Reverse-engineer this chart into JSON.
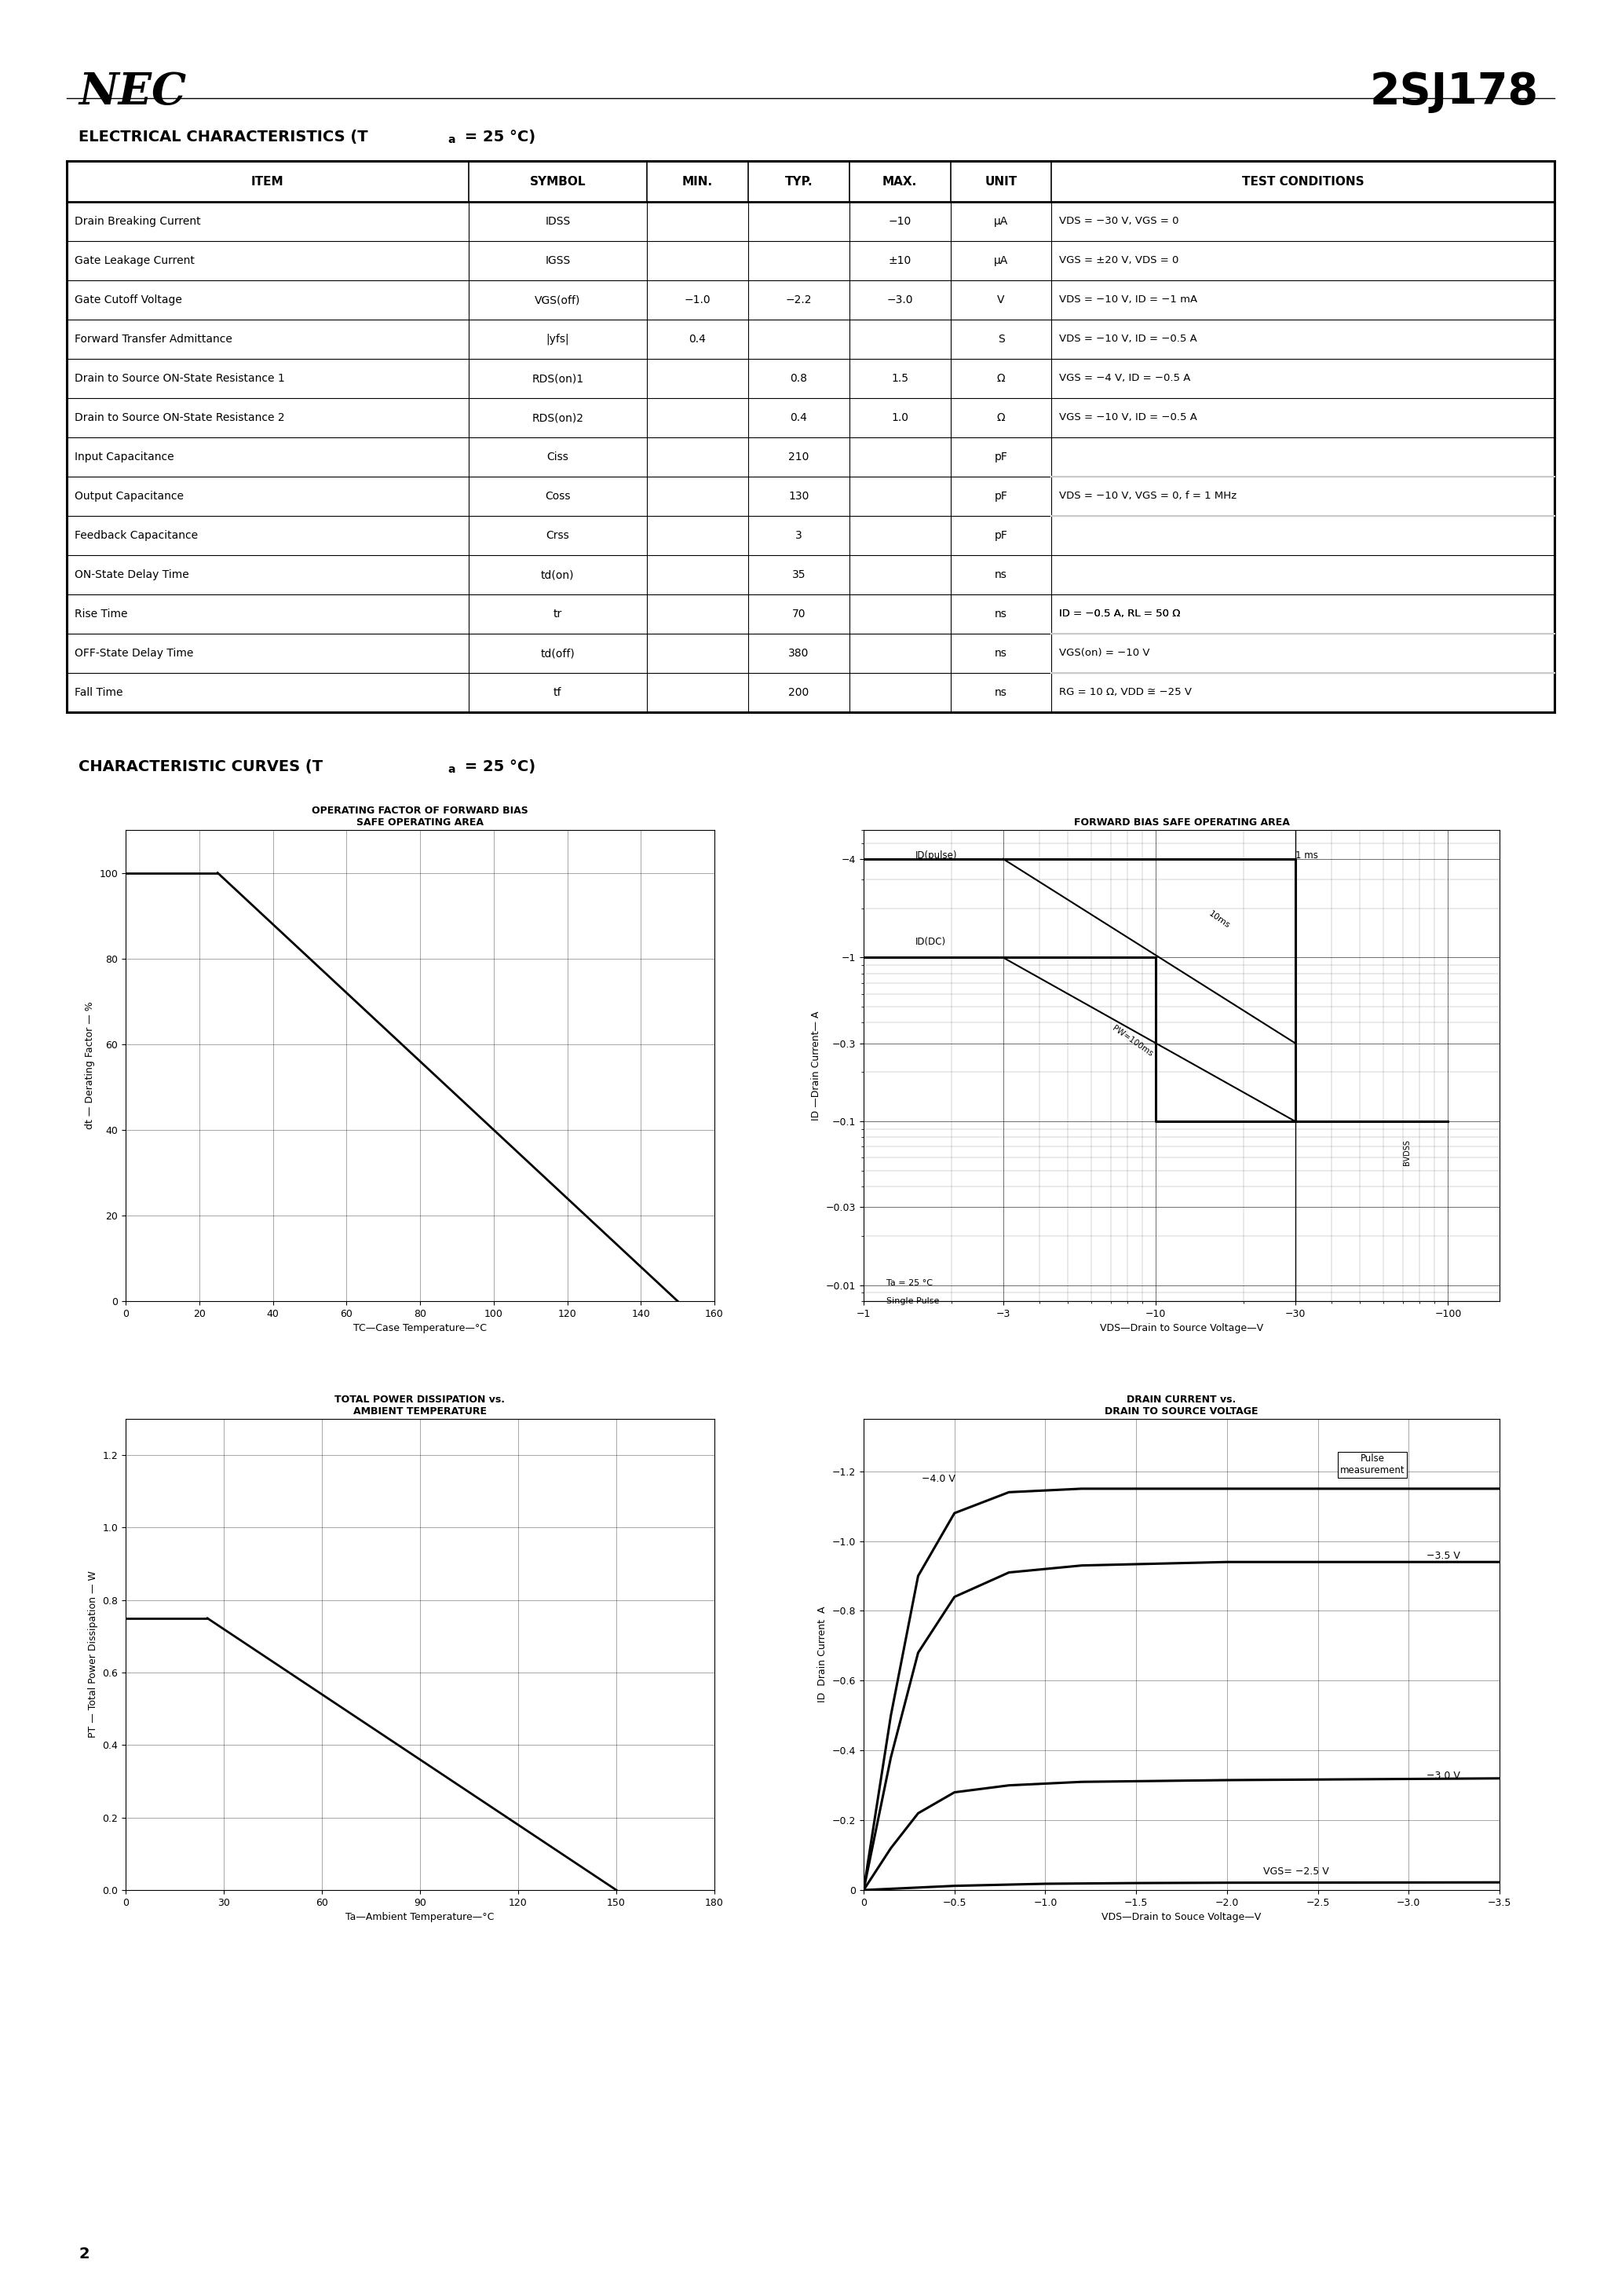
{
  "title_left": "NEC",
  "title_right": "2SJ178",
  "section1_title": "ELECTRICAL CHARACTERISTICS (Ta = 25 °C)",
  "section2_title": "CHARACTERISTIC CURVES (Ta = 25 °C)",
  "table_headers": [
    "ITEM",
    "SYMBOL",
    "MIN.",
    "TYP.",
    "MAX.",
    "UNIT",
    "TEST CONDITIONS"
  ],
  "symbol_texts": [
    "IDSS",
    "IGSS",
    "VGS(off)",
    "|yfs|",
    "RDS(on)1",
    "RDS(on)2",
    "Ciss",
    "Coss",
    "Crss",
    "td(on)",
    "tr",
    "td(off)",
    "tf"
  ],
  "table_rows": [
    [
      "Drain Breaking Current",
      "IDSS",
      "",
      "",
      "−10",
      "μA",
      "VDS = −30 V, VGS = 0"
    ],
    [
      "Gate Leakage Current",
      "IGSS",
      "",
      "",
      "±10",
      "μA",
      "VGS = ±20 V, VDS = 0"
    ],
    [
      "Gate Cutoff Voltage",
      "VGS(off)",
      "−1.0",
      "−2.2",
      "−3.0",
      "V",
      "VDS = −10 V, ID = −1 mA"
    ],
    [
      "Forward Transfer Admittance",
      "|yfs|",
      "0.4",
      "",
      "",
      "S",
      "VDS = −10 V, ID = −0.5 A"
    ],
    [
      "Drain to Source ON-State Resistance 1",
      "RDS(on)1",
      "",
      "0.8",
      "1.5",
      "Ω",
      "VGS = −4 V, ID = −0.5 A"
    ],
    [
      "Drain to Source ON-State Resistance 2",
      "RDS(on)2",
      "",
      "0.4",
      "1.0",
      "Ω",
      "VGS = −10 V, ID = −0.5 A"
    ],
    [
      "Input Capacitance",
      "Ciss",
      "",
      "210",
      "",
      "pF",
      ""
    ],
    [
      "Output Capacitance",
      "Coss",
      "",
      "130",
      "",
      "pF",
      "VDS = −10 V, VGS = 0, f = 1 MHz"
    ],
    [
      "Feedback Capacitance",
      "Crss",
      "",
      "3",
      "",
      "pF",
      ""
    ],
    [
      "ON-State Delay Time",
      "td(on)",
      "",
      "35",
      "",
      "ns",
      ""
    ],
    [
      "Rise Time",
      "tr",
      "",
      "70",
      "",
      "ns",
      "ID = −0.5 A, RL = 50 Ω"
    ],
    [
      "OFF-State Delay Time",
      "td(off)",
      "",
      "380",
      "",
      "ns",
      "VGS(on) = −10 V"
    ],
    [
      "Fall Time",
      "tf",
      "",
      "200",
      "",
      "ns",
      "RG = 10 Ω, VDD ≅ −25 V"
    ]
  ],
  "bg_color": "#ffffff",
  "text_color": "#000000",
  "page_number": "2"
}
